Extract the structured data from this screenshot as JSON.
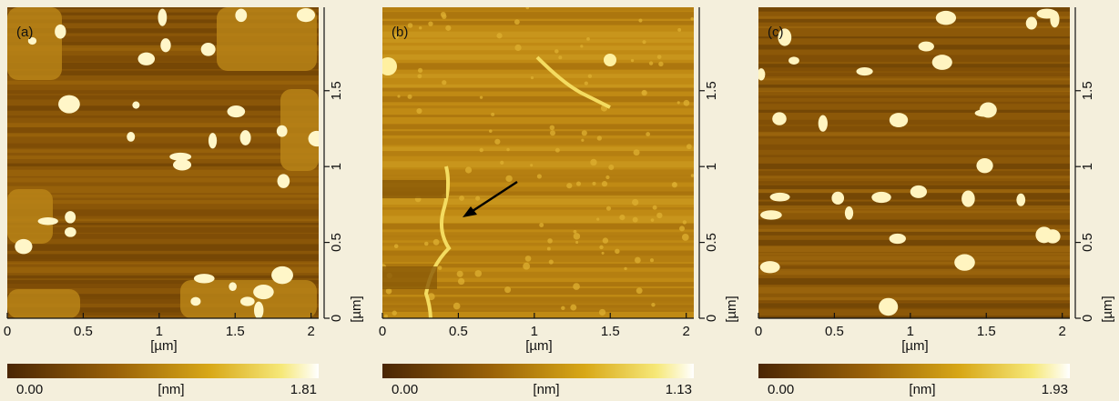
{
  "panels": [
    {
      "label": "(a)",
      "xlim": [
        0,
        2.05
      ],
      "ylim": [
        0,
        2.05
      ],
      "xticks": [
        0,
        0.5,
        1,
        1.5,
        2
      ],
      "yticks": [
        0,
        0.5,
        1,
        1.5
      ],
      "xlabel": "[µm]",
      "ylabel": "[µm]",
      "colorbar": {
        "min_label": "0.00",
        "unit": "[nm]",
        "max_label": "1.81"
      }
    },
    {
      "label": "(b)",
      "xlim": [
        0,
        2.05
      ],
      "ylim": [
        0,
        2.05
      ],
      "xticks": [
        0,
        0.5,
        1,
        1.5,
        2
      ],
      "yticks": [
        0,
        0.5,
        1,
        1.5
      ],
      "xlabel": "[µm]",
      "ylabel": "[µm]",
      "colorbar": {
        "min_label": "0.00",
        "unit": "[nm]",
        "max_label": "1.13"
      }
    },
    {
      "label": "(c)",
      "xlim": [
        0,
        2.05
      ],
      "ylim": [
        0,
        2.05
      ],
      "xticks": [
        0,
        0.5,
        1,
        1.5,
        2
      ],
      "yticks": [
        0,
        0.5,
        1,
        1.5
      ],
      "xlabel": "[µm]",
      "ylabel": "[µm]",
      "colorbar": {
        "min_label": "0.00",
        "unit": "[nm]",
        "max_label": "1.93"
      }
    }
  ]
}
